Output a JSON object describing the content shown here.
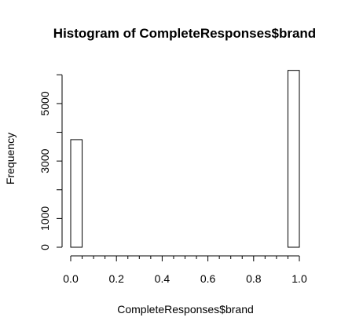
{
  "chart_data": {
    "type": "bar",
    "title": "Histogram of CompleteResponses$brand",
    "xlabel": "CompleteResponses$brand",
    "ylabel": "Frequency",
    "bin_width": 0.05,
    "bins": [
      {
        "x_start": 0.0,
        "x_end": 0.05,
        "value": 3744
      },
      {
        "x_start": 0.05,
        "x_end": 0.1,
        "value": 0
      },
      {
        "x_start": 0.1,
        "x_end": 0.15,
        "value": 0
      },
      {
        "x_start": 0.15,
        "x_end": 0.2,
        "value": 0
      },
      {
        "x_start": 0.2,
        "x_end": 0.25,
        "value": 0
      },
      {
        "x_start": 0.25,
        "x_end": 0.3,
        "value": 0
      },
      {
        "x_start": 0.3,
        "x_end": 0.35,
        "value": 0
      },
      {
        "x_start": 0.35,
        "x_end": 0.4,
        "value": 0
      },
      {
        "x_start": 0.4,
        "x_end": 0.45,
        "value": 0
      },
      {
        "x_start": 0.45,
        "x_end": 0.5,
        "value": 0
      },
      {
        "x_start": 0.5,
        "x_end": 0.55,
        "value": 0
      },
      {
        "x_start": 0.55,
        "x_end": 0.6,
        "value": 0
      },
      {
        "x_start": 0.6,
        "x_end": 0.65,
        "value": 0
      },
      {
        "x_start": 0.65,
        "x_end": 0.7,
        "value": 0
      },
      {
        "x_start": 0.7,
        "x_end": 0.75,
        "value": 0
      },
      {
        "x_start": 0.75,
        "x_end": 0.8,
        "value": 0
      },
      {
        "x_start": 0.8,
        "x_end": 0.85,
        "value": 0
      },
      {
        "x_start": 0.85,
        "x_end": 0.9,
        "value": 0
      },
      {
        "x_start": 0.9,
        "x_end": 0.95,
        "value": 0
      },
      {
        "x_start": 0.95,
        "x_end": 1.0,
        "value": 6154
      }
    ],
    "xlim": [
      0,
      1
    ],
    "ylim": [
      0,
      6200
    ],
    "x_ticks": [
      0.0,
      0.2,
      0.4,
      0.6,
      0.8,
      1.0
    ],
    "x_tick_labels": [
      "0.0",
      "0.2",
      "0.4",
      "0.6",
      "0.8",
      "1.0"
    ],
    "y_ticks_minor": [
      0,
      1000,
      2000,
      3000,
      4000,
      5000,
      6000
    ],
    "y_tick_labels": [
      {
        "value": 0,
        "label": "0"
      },
      {
        "value": 1000,
        "label": "1000"
      },
      {
        "value": 3000,
        "label": "3000"
      },
      {
        "value": 5000,
        "label": "5000"
      }
    ],
    "grid": false,
    "colors": {
      "bar_fill": "#ffffff",
      "bar_stroke": "#000000",
      "axis": "#000000"
    }
  }
}
